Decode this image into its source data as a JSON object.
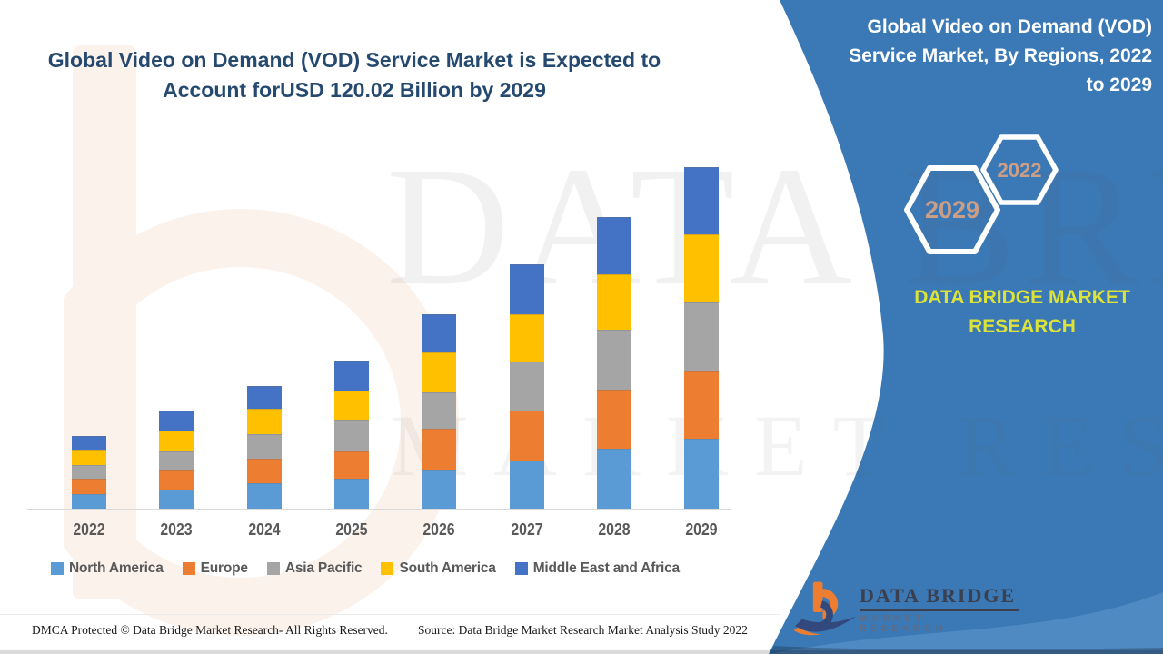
{
  "title": {
    "lines": [
      "Global Video on Demand (VOD) Service Market is Expected to",
      "Account forUSD 120.02 Billion by 2029"
    ]
  },
  "side_panel": {
    "heading_lines": [
      "Global Video on Demand (VOD)",
      "Service Market, By Regions, 2022",
      "to 2029"
    ],
    "hexagons": [
      {
        "label": "2029"
      },
      {
        "label": "2022"
      }
    ],
    "brand_lines": [
      "DATA BRIDGE MARKET",
      "RESEARCH"
    ],
    "logo": {
      "name": "DATA BRIDGE",
      "tagline": "MARKET RESEARCH"
    },
    "panel_color": "#3a79b6",
    "brand_text_color": "#dce23a",
    "hexagon_label_color": "#cb9e87"
  },
  "watermark": {
    "line1": "DATA BRIDGE",
    "line2": "MARKET RESEARCH"
  },
  "footer": {
    "left": "DMCA Protected © Data Bridge Market Research- All Rights Reserved.",
    "right": "Source: Data Bridge Market Research Market Analysis Study 2022"
  },
  "chart_data": {
    "type": "bar",
    "stacked": true,
    "unit": "USD Billion",
    "title": "Global Video on Demand (VOD) Service Market, By Regions, 2022 to 2029",
    "categories": [
      "2022",
      "2023",
      "2024",
      "2025",
      "2026",
      "2027",
      "2028",
      "2029"
    ],
    "series": [
      {
        "name": "North America",
        "color": "#5B9BD5",
        "values": [
          5.2,
          6.6,
          8.9,
          10.6,
          13.6,
          16.8,
          21.1,
          24.5
        ]
      },
      {
        "name": "Europe",
        "color": "#ED7D31",
        "values": [
          5.4,
          7.1,
          8.6,
          9.6,
          14.4,
          17.6,
          20.7,
          23.9
        ]
      },
      {
        "name": "Asia Pacific",
        "color": "#A5A5A5",
        "values": [
          4.8,
          6.4,
          8.6,
          11.2,
          12.8,
          17.3,
          21.0,
          23.9
        ]
      },
      {
        "name": "South America",
        "color": "#FFC000",
        "values": [
          5.3,
          7.5,
          8.9,
          10.1,
          14.1,
          16.6,
          19.7,
          24.0
        ]
      },
      {
        "name": "Middle East and Africa",
        "color": "#4472C4",
        "values": [
          4.8,
          6.9,
          8.0,
          10.4,
          13.5,
          17.5,
          20.0,
          23.7
        ]
      }
    ],
    "totals": [
      25.5,
      34.5,
      43.0,
      51.9,
      68.4,
      85.8,
      102.5,
      120.0
    ],
    "ylim": [
      0,
      125
    ],
    "gridlines": false,
    "legend_position": "bottom",
    "x_axis_label_color": "#595959"
  }
}
